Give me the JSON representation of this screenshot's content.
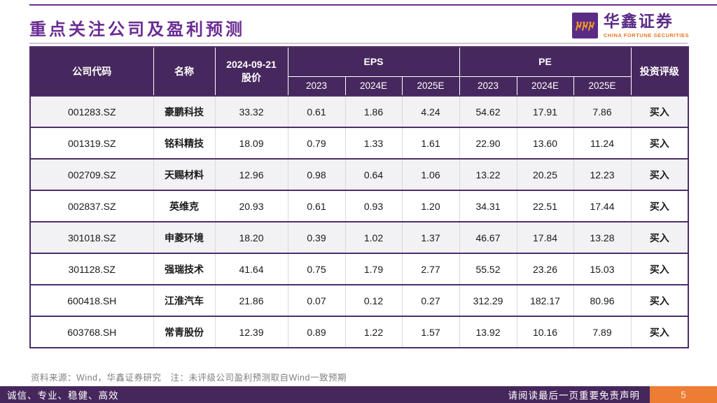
{
  "page": {
    "title": "重点关注公司及盈利预测",
    "logo": {
      "name": "华鑫证券",
      "subtitle": "CHINA FORTUNE SECURITIES"
    },
    "source_note": "资料来源：Wind，华鑫证券研究　注：未评级公司盈利预测取自Wind一致预期",
    "footer": {
      "motto": "诚信、专业、稳健、高效",
      "disclaimer": "请阅读最后一页重要免责声明",
      "page_number": "5"
    }
  },
  "table": {
    "headers": {
      "code": "公司代码",
      "name": "名称",
      "price": "2024-09-21\n股价",
      "eps_group": "EPS",
      "pe_group": "PE",
      "rating": "投资评级",
      "years": [
        "2023",
        "2024E",
        "2025E"
      ]
    },
    "rows": [
      {
        "code": "001283.SZ",
        "name": "豪鹏科技",
        "price": "33.32",
        "eps": [
          "0.61",
          "1.86",
          "4.24"
        ],
        "pe": [
          "54.62",
          "17.91",
          "7.86"
        ],
        "rating": "买入"
      },
      {
        "code": "001319.SZ",
        "name": "铭科精技",
        "price": "18.09",
        "eps": [
          "0.79",
          "1.33",
          "1.61"
        ],
        "pe": [
          "22.90",
          "13.60",
          "11.24"
        ],
        "rating": "买入"
      },
      {
        "code": "002709.SZ",
        "name": "天赐材料",
        "price": "12.96",
        "eps": [
          "0.98",
          "0.64",
          "1.06"
        ],
        "pe": [
          "13.22",
          "20.25",
          "12.23"
        ],
        "rating": "买入"
      },
      {
        "code": "002837.SZ",
        "name": "英维克",
        "price": "20.93",
        "eps": [
          "0.61",
          "0.93",
          "1.20"
        ],
        "pe": [
          "34.31",
          "22.51",
          "17.44"
        ],
        "rating": "买入"
      },
      {
        "code": "301018.SZ",
        "name": "申菱环境",
        "price": "18.20",
        "eps": [
          "0.39",
          "1.02",
          "1.37"
        ],
        "pe": [
          "46.67",
          "17.84",
          "13.28"
        ],
        "rating": "买入"
      },
      {
        "code": "301128.SZ",
        "name": "强瑞技术",
        "price": "41.64",
        "eps": [
          "0.75",
          "1.79",
          "2.77"
        ],
        "pe": [
          "55.52",
          "23.26",
          "15.03"
        ],
        "rating": "买入"
      },
      {
        "code": "600418.SH",
        "name": "江淮汽车",
        "price": "21.86",
        "eps": [
          "0.07",
          "0.12",
          "0.27"
        ],
        "pe": [
          "312.29",
          "182.17",
          "80.96"
        ],
        "rating": "买入"
      },
      {
        "code": "603768.SH",
        "name": "常青股份",
        "price": "12.39",
        "eps": [
          "0.89",
          "1.22",
          "1.57"
        ],
        "pe": [
          "13.92",
          "10.16",
          "7.89"
        ],
        "rating": "买入"
      }
    ]
  },
  "colors": {
    "accent_purple": "#6a2c93",
    "header_bg": "#47285e",
    "row_divider": "#4e2d6b",
    "shaded_row": "#f2f1f3",
    "footer_bg": "#46275c",
    "page_orange": "#ec7d33",
    "logo_purple": "#5b2c86",
    "logo_orange": "#e87722"
  }
}
